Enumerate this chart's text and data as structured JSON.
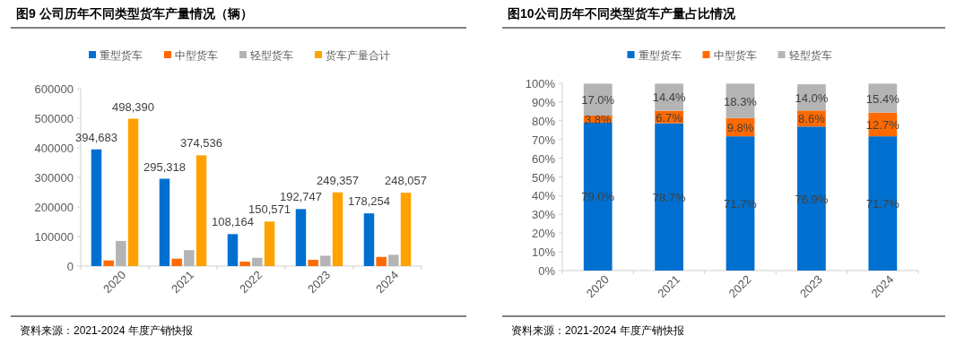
{
  "chart_data": [
    {
      "type": "bar",
      "title": "图9  公司历年不同类型货车产量情况（辆）",
      "categories": [
        "2020",
        "2021",
        "2022",
        "2023",
        "2024"
      ],
      "series": [
        {
          "name": "重型货车",
          "color": "#0070d0",
          "values": [
            394683,
            295318,
            108164,
            192747,
            178254
          ],
          "value_labels": [
            "394,683",
            "295,318",
            "108,164",
            "192,747",
            "178,254"
          ]
        },
        {
          "name": "中型货车",
          "color": "#ff6a00",
          "values": [
            19000,
            25000,
            15000,
            21000,
            31000
          ]
        },
        {
          "name": "轻型货车",
          "color": "#b4b4b4",
          "values": [
            85000,
            54000,
            28000,
            35000,
            38000
          ]
        },
        {
          "name": "货车产量合计",
          "color": "#ffa200",
          "values": [
            498390,
            374536,
            150571,
            249357,
            248057
          ],
          "value_labels": [
            "498,390",
            "374,536",
            "150,571",
            "249,357",
            "248,057"
          ]
        }
      ],
      "ylim": [
        0,
        600000
      ],
      "yticks": [
        0,
        100000,
        200000,
        300000,
        400000,
        500000,
        600000
      ],
      "legend": "top",
      "annotations": [
        "资料来源：2021-2024 年度产销快报"
      ]
    },
    {
      "type": "bar",
      "stacked": true,
      "title": "图10公司历年不同类型货车产量占比情况",
      "categories": [
        "2020",
        "2021",
        "2022",
        "2023",
        "2024"
      ],
      "series": [
        {
          "name": "重型货车",
          "color": "#0070d0",
          "values": [
            79.0,
            78.7,
            71.7,
            76.9,
            71.7
          ],
          "value_labels": [
            "79.0%",
            "78.7%",
            "71.7%",
            "76.9%",
            "71.7%"
          ]
        },
        {
          "name": "中型货车",
          "color": "#ff6a00",
          "values": [
            3.8,
            6.7,
            9.8,
            8.6,
            12.7
          ],
          "value_labels": [
            "3.8%",
            "6.7%",
            "9.8%",
            "8.6%",
            "12.7%"
          ]
        },
        {
          "name": "轻型货车",
          "color": "#b4b4b4",
          "values": [
            17.0,
            14.4,
            18.3,
            14.0,
            15.4
          ],
          "value_labels": [
            "17.0%",
            "14.4%",
            "18.3%",
            "14.0%",
            "15.4%"
          ]
        }
      ],
      "ylim": [
        0,
        100
      ],
      "yticks": [
        {
          "value": 0,
          "label": "0%"
        },
        {
          "value": 10,
          "label": "10%"
        },
        {
          "value": 20,
          "label": "20%"
        },
        {
          "value": 30,
          "label": "30%"
        },
        {
          "value": 40,
          "label": "40%"
        },
        {
          "value": 50,
          "label": "50%"
        },
        {
          "value": 60,
          "label": "60%"
        },
        {
          "value": 70,
          "label": "70%"
        },
        {
          "value": 80,
          "label": "80%"
        },
        {
          "value": 90,
          "label": "90%"
        },
        {
          "value": 100,
          "label": "100%"
        }
      ],
      "legend": "top",
      "annotations": [
        "资料来源：2021-2024 年度产销快报"
      ]
    }
  ]
}
